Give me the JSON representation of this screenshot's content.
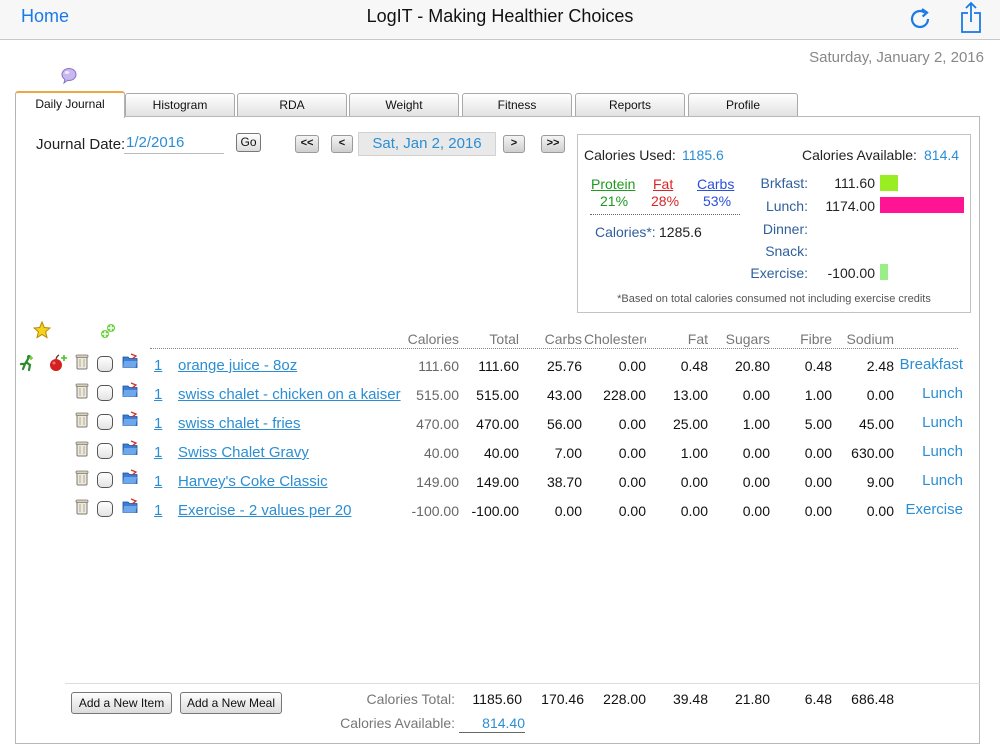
{
  "topbar": {
    "home_label": "Home",
    "title": "LogIT - Making Healthier Choices",
    "refresh_icon": "refresh-icon",
    "share_icon": "share-icon"
  },
  "date_header": "Saturday, January 2, 2016",
  "tabs": [
    {
      "label": "Daily Journal",
      "active": true
    },
    {
      "label": "Histogram"
    },
    {
      "label": "RDA"
    },
    {
      "label": "Weight"
    },
    {
      "label": "Fitness"
    },
    {
      "label": "Reports"
    },
    {
      "label": "Profile"
    }
  ],
  "journal": {
    "date_label": "Journal Date:",
    "date_value": "1/2/2016",
    "go_label": "Go",
    "first_label": "<<",
    "prev_label": "<",
    "display_date": "Sat, Jan 2, 2016",
    "next_label": ">",
    "last_label": ">>"
  },
  "summary": {
    "used_label": "Calories Used:",
    "used_value": "1185.6",
    "available_label": "Calories Available:",
    "available_value": "814.4",
    "protein_label": "Protein",
    "protein_pct": "21%",
    "fat_label": "Fat",
    "fat_pct": "28%",
    "carbs_label": "Carbs",
    "carbs_pct": "53%",
    "calories_star_label": "Calories*:",
    "calories_star_value": "1285.6",
    "meals": [
      {
        "label": "Brkfast:",
        "value": "111.60",
        "bar_fraction": 0.22,
        "color": "#99ee22"
      },
      {
        "label": "Lunch:",
        "value": "1174.00",
        "bar_fraction": 1.0,
        "color": "#ff1493"
      },
      {
        "label": "Dinner:",
        "value": "",
        "bar_fraction": 0,
        "color": ""
      },
      {
        "label": "Snack:",
        "value": "",
        "bar_fraction": 0,
        "color": ""
      },
      {
        "label": "Exercise:",
        "value": "-100.00",
        "bar_fraction": 0.1,
        "color": "#99ee88"
      }
    ],
    "footnote": "*Based on total calories consumed not including exercise credits"
  },
  "columns": [
    "Calories",
    "Total",
    "Carbs",
    "Cholesterol",
    "Fat",
    "Sugars",
    "Fibre",
    "Sodium"
  ],
  "rows": [
    {
      "qty": "1",
      "name": "orange juice - 8oz",
      "calories": "111.60",
      "total": "111.60",
      "carbs": "25.76",
      "cholesterol": "0.00",
      "fat": "0.48",
      "sugars": "20.80",
      "fibre": "0.48",
      "sodium": "2.48",
      "meal": "Breakfast"
    },
    {
      "qty": "1",
      "name": "swiss chalet - chicken on a kaiser",
      "calories": "515.00",
      "total": "515.00",
      "carbs": "43.00",
      "cholesterol": "228.00",
      "fat": "13.00",
      "sugars": "0.00",
      "fibre": "1.00",
      "sodium": "0.00",
      "meal": "Lunch"
    },
    {
      "qty": "1",
      "name": "swiss chalet - fries",
      "calories": "470.00",
      "total": "470.00",
      "carbs": "56.00",
      "cholesterol": "0.00",
      "fat": "25.00",
      "sugars": "1.00",
      "fibre": "5.00",
      "sodium": "45.00",
      "meal": "Lunch"
    },
    {
      "qty": "1",
      "name": "Swiss Chalet Gravy",
      "calories": "40.00",
      "total": "40.00",
      "carbs": "7.00",
      "cholesterol": "0.00",
      "fat": "1.00",
      "sugars": "0.00",
      "fibre": "0.00",
      "sodium": "630.00",
      "meal": "Lunch"
    },
    {
      "qty": "1",
      "name": "Harvey's Coke Classic",
      "calories": "149.00",
      "total": "149.00",
      "carbs": "38.70",
      "cholesterol": "0.00",
      "fat": "0.00",
      "sugars": "0.00",
      "fibre": "0.00",
      "sodium": "9.00",
      "meal": "Lunch"
    },
    {
      "qty": "1",
      "name": "Exercise - 2 values per 20",
      "calories": "-100.00",
      "total": "-100.00",
      "carbs": "0.00",
      "cholesterol": "0.00",
      "fat": "0.00",
      "sugars": "0.00",
      "fibre": "0.00",
      "sodium": "0.00",
      "meal": "Exercise"
    }
  ],
  "footer": {
    "add_item_label": "Add a New Item",
    "add_meal_label": "Add a New Meal",
    "calories_total_label": "Calories Total:",
    "total": "1185.60",
    "carbs": "170.46",
    "cholesterol": "228.00",
    "fat": "39.48",
    "sugars": "21.80",
    "fibre": "6.48",
    "sodium": "686.48",
    "calories_available_label": "Calories Available:",
    "available": "814.40"
  },
  "colors": {
    "accent": "#2b8ed3",
    "protein": "#1e9a1e",
    "fat": "#d92525",
    "carbs": "#2b4fd9"
  }
}
